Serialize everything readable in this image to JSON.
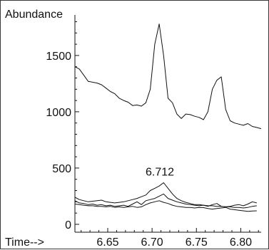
{
  "chart_data": {
    "type": "line",
    "ylabel": "Abundance",
    "xlabel": "Time-->",
    "xlim": [
      6.613,
      6.823
    ],
    "ylim": [
      -70,
      1860
    ],
    "x_ticks": [
      "6.65",
      "6.70",
      "6.75",
      "6.80"
    ],
    "x_tick_values": [
      6.65,
      6.7,
      6.75,
      6.8
    ],
    "y_ticks": [
      "0",
      "500",
      "1000",
      "1500"
    ],
    "y_tick_values": [
      0,
      500,
      1000,
      1500
    ],
    "grid": false,
    "annotations": [
      {
        "text": "6.712",
        "x": 6.712,
        "y": 370
      }
    ],
    "series": [
      {
        "x": [
          6.613,
          6.618,
          6.628,
          6.638,
          6.643,
          6.648,
          6.653,
          6.658,
          6.663,
          6.668,
          6.673,
          6.678,
          6.683,
          6.688,
          6.693,
          6.698,
          6.703,
          6.708,
          6.713,
          6.718,
          6.723,
          6.728,
          6.733,
          6.738,
          6.743,
          6.748,
          6.753,
          6.758,
          6.763,
          6.768,
          6.773,
          6.778,
          6.783,
          6.788,
          6.793,
          6.798,
          6.803,
          6.808,
          6.813,
          6.818,
          6.823
        ],
        "values": [
          1400,
          1380,
          1270,
          1255,
          1240,
          1210,
          1180,
          1160,
          1120,
          1100,
          1085,
          1055,
          1060,
          1050,
          1080,
          1200,
          1600,
          1780,
          1500,
          1120,
          1080,
          980,
          940,
          980,
          975,
          960,
          950,
          930,
          1000,
          1200,
          1280,
          1310,
          1020,
          920,
          900,
          890,
          880,
          895,
          870,
          860,
          850
        ]
      },
      {
        "x": [
          6.613,
          6.618,
          6.623,
          6.628,
          6.633,
          6.638,
          6.643,
          6.648,
          6.653,
          6.658,
          6.663,
          6.668,
          6.673,
          6.678,
          6.683,
          6.688,
          6.693,
          6.698,
          6.703,
          6.708,
          6.713,
          6.718,
          6.723,
          6.728,
          6.733,
          6.738,
          6.743,
          6.748,
          6.753,
          6.758,
          6.763,
          6.768,
          6.773,
          6.778,
          6.783,
          6.788,
          6.793,
          6.798,
          6.803,
          6.808,
          6.813,
          6.818
        ],
        "values": [
          240,
          220,
          210,
          200,
          205,
          210,
          215,
          200,
          195,
          190,
          195,
          200,
          210,
          220,
          230,
          245,
          260,
          300,
          320,
          340,
          370,
          320,
          270,
          230,
          210,
          195,
          185,
          175,
          175,
          170,
          165,
          165,
          160,
          160,
          155,
          155,
          150,
          150,
          145,
          150,
          160,
          165
        ]
      },
      {
        "x": [
          6.613,
          6.618,
          6.623,
          6.628,
          6.633,
          6.638,
          6.643,
          6.648,
          6.653,
          6.658,
          6.663,
          6.668,
          6.673,
          6.678,
          6.683,
          6.688,
          6.693,
          6.698,
          6.703,
          6.708,
          6.713,
          6.718,
          6.723,
          6.728,
          6.733,
          6.738,
          6.743,
          6.748,
          6.753,
          6.758,
          6.763,
          6.768,
          6.773,
          6.778,
          6.783,
          6.788,
          6.793,
          6.798,
          6.803,
          6.808,
          6.813,
          6.818
        ],
        "values": [
          210,
          190,
          185,
          175,
          180,
          170,
          175,
          165,
          170,
          160,
          165,
          170,
          160,
          180,
          200,
          175,
          210,
          220,
          230,
          250,
          270,
          230,
          215,
          200,
          190,
          180,
          175,
          170,
          165,
          170,
          160,
          175,
          185,
          160,
          155,
          160,
          170,
          175,
          165,
          180,
          200,
          190
        ]
      },
      {
        "x": [
          6.613,
          6.618,
          6.623,
          6.628,
          6.633,
          6.638,
          6.643,
          6.648,
          6.653,
          6.658,
          6.663,
          6.668,
          6.673,
          6.678,
          6.683,
          6.688,
          6.693,
          6.698,
          6.703,
          6.708,
          6.713,
          6.718,
          6.723,
          6.728,
          6.733,
          6.738,
          6.743,
          6.748,
          6.753,
          6.758,
          6.763,
          6.768,
          6.773,
          6.778,
          6.783,
          6.788,
          6.793,
          6.798,
          6.803,
          6.808,
          6.813,
          6.818
        ],
        "values": [
          180,
          175,
          170,
          165,
          165,
          160,
          160,
          155,
          160,
          150,
          155,
          150,
          155,
          160,
          150,
          155,
          175,
          190,
          200,
          210,
          195,
          185,
          170,
          160,
          155,
          150,
          150,
          145,
          150,
          148,
          140,
          135,
          140,
          145,
          150,
          135,
          130,
          125,
          120,
          115,
          118,
          120
        ]
      }
    ]
  }
}
